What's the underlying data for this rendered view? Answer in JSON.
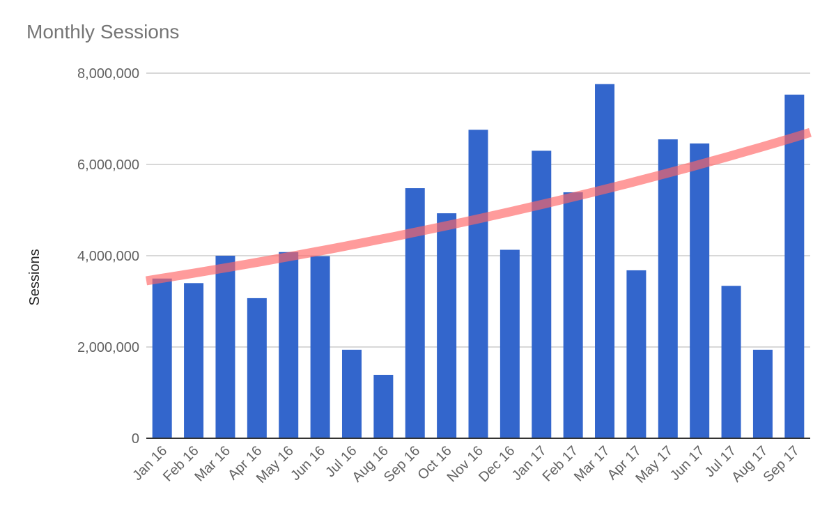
{
  "chart_data": {
    "type": "bar",
    "title": "Monthly Sessions",
    "xlabel": "",
    "ylabel": "Sessions",
    "ylim": [
      0,
      8000000
    ],
    "yticks": [
      0,
      2000000,
      4000000,
      6000000,
      8000000
    ],
    "ytick_labels": [
      "0",
      "2,000,000",
      "4,000,000",
      "6,000,000",
      "8,000,000"
    ],
    "categories": [
      "Jan 16",
      "Feb 16",
      "Mar 16",
      "Apr 16",
      "May 16",
      "Jun 16",
      "Jul 16",
      "Aug 16",
      "Sep 16",
      "Oct 16",
      "Nov 16",
      "Dec 16",
      "Jan 17",
      "Feb 17",
      "Mar 17",
      "Apr 17",
      "May 17",
      "Jun 17",
      "Jul 17",
      "Aug 17",
      "Sep 17"
    ],
    "values": [
      3500000,
      3400000,
      4000000,
      3070000,
      4080000,
      3990000,
      1940000,
      1390000,
      5480000,
      4930000,
      6760000,
      4130000,
      6300000,
      5390000,
      7760000,
      3680000,
      6550000,
      6460000,
      3340000,
      1940000,
      7530000
    ],
    "trendline": {
      "type": "exponential",
      "start": 3450000,
      "end": 6700000
    },
    "grid": true,
    "legend": "none",
    "colors": {
      "bar": "#3366cc",
      "trend": "#ff6666",
      "grid": "#cccccc",
      "axis": "#333333"
    }
  }
}
